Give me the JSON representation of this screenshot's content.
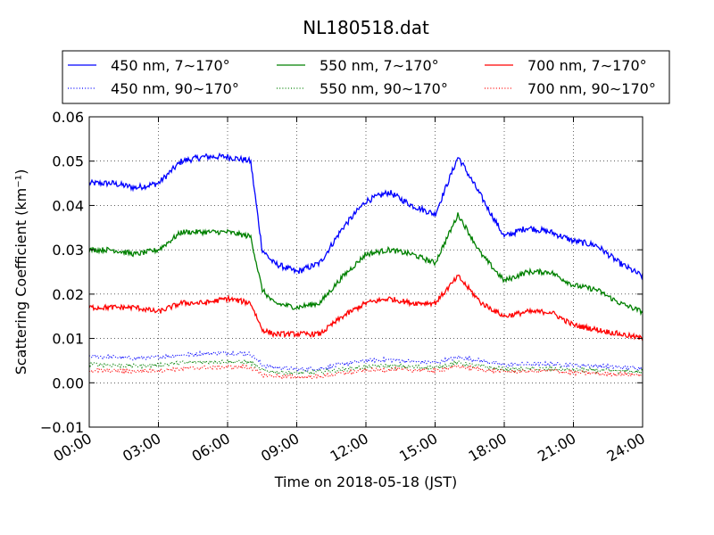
{
  "chart_data": {
    "type": "line",
    "title": "NL180518.dat",
    "xlabel": "Time on 2018-05-18 (JST)",
    "ylabel": "Scattering Coefficient (km⁻¹)",
    "xlim": [
      0,
      24
    ],
    "ylim": [
      -0.01,
      0.06
    ],
    "x_ticks": [
      0,
      3,
      6,
      9,
      12,
      15,
      18,
      21,
      24
    ],
    "x_tick_labels": [
      "00:00",
      "03:00",
      "06:00",
      "09:00",
      "12:00",
      "15:00",
      "18:00",
      "21:00",
      "24:00"
    ],
    "y_ticks": [
      -0.01,
      0.0,
      0.01,
      0.02,
      0.03,
      0.04,
      0.05,
      0.06
    ],
    "y_tick_labels": [
      "−0.01",
      "0.00",
      "0.01",
      "0.02",
      "0.03",
      "0.04",
      "0.05",
      "0.06"
    ],
    "grid": true,
    "legend_placement": "top, above plot",
    "x": [
      0,
      1,
      2,
      3,
      4,
      5,
      6,
      7,
      7.5,
      8,
      9,
      10,
      11,
      12,
      13,
      14,
      15,
      16,
      17,
      18,
      19,
      20,
      21,
      22,
      23,
      24
    ],
    "series": [
      {
        "name": "450 nm, 7∼170°",
        "color": "#0000ff",
        "style": "solid",
        "values": [
          0.045,
          0.045,
          0.044,
          0.045,
          0.05,
          0.051,
          0.051,
          0.05,
          0.03,
          0.027,
          0.025,
          0.027,
          0.035,
          0.041,
          0.043,
          0.04,
          0.038,
          0.051,
          0.042,
          0.033,
          0.035,
          0.034,
          0.032,
          0.031,
          0.027,
          0.024
        ]
      },
      {
        "name": "450 nm, 90∼170°",
        "color": "#0000ff",
        "style": "dotted",
        "values": [
          0.006,
          0.0058,
          0.0055,
          0.0058,
          0.0063,
          0.0066,
          0.0068,
          0.0065,
          0.004,
          0.0035,
          0.003,
          0.0032,
          0.0042,
          0.005,
          0.0052,
          0.0048,
          0.0045,
          0.0058,
          0.005,
          0.004,
          0.0042,
          0.0042,
          0.004,
          0.0038,
          0.0035,
          0.0033
        ]
      },
      {
        "name": "550 nm, 7∼170°",
        "color": "#008000",
        "style": "solid",
        "values": [
          0.03,
          0.03,
          0.029,
          0.03,
          0.034,
          0.034,
          0.034,
          0.033,
          0.021,
          0.018,
          0.017,
          0.018,
          0.024,
          0.029,
          0.03,
          0.029,
          0.027,
          0.038,
          0.029,
          0.023,
          0.025,
          0.025,
          0.022,
          0.021,
          0.018,
          0.016
        ]
      },
      {
        "name": "550 nm, 90∼170°",
        "color": "#008000",
        "style": "dotted",
        "values": [
          0.0042,
          0.004,
          0.0038,
          0.004,
          0.0045,
          0.0047,
          0.0048,
          0.0046,
          0.0028,
          0.0025,
          0.0022,
          0.0024,
          0.003,
          0.0036,
          0.0038,
          0.0036,
          0.0034,
          0.0045,
          0.0037,
          0.003,
          0.0031,
          0.0031,
          0.0029,
          0.0028,
          0.0026,
          0.0025
        ]
      },
      {
        "name": "700 nm, 7∼170°",
        "color": "#ff0000",
        "style": "solid",
        "values": [
          0.017,
          0.017,
          0.017,
          0.016,
          0.018,
          0.018,
          0.019,
          0.018,
          0.012,
          0.011,
          0.011,
          0.011,
          0.015,
          0.018,
          0.019,
          0.018,
          0.018,
          0.024,
          0.018,
          0.015,
          0.016,
          0.016,
          0.013,
          0.012,
          0.011,
          0.01
        ]
      },
      {
        "name": "700 nm, 90∼170°",
        "color": "#ff0000",
        "style": "dotted",
        "values": [
          0.0028,
          0.0027,
          0.0026,
          0.0028,
          0.0032,
          0.0034,
          0.0036,
          0.0035,
          0.0018,
          0.0015,
          0.0013,
          0.0014,
          0.0022,
          0.0028,
          0.003,
          0.0029,
          0.0027,
          0.0037,
          0.003,
          0.0025,
          0.0026,
          0.0027,
          0.0023,
          0.0021,
          0.0019,
          0.0018
        ]
      }
    ]
  }
}
